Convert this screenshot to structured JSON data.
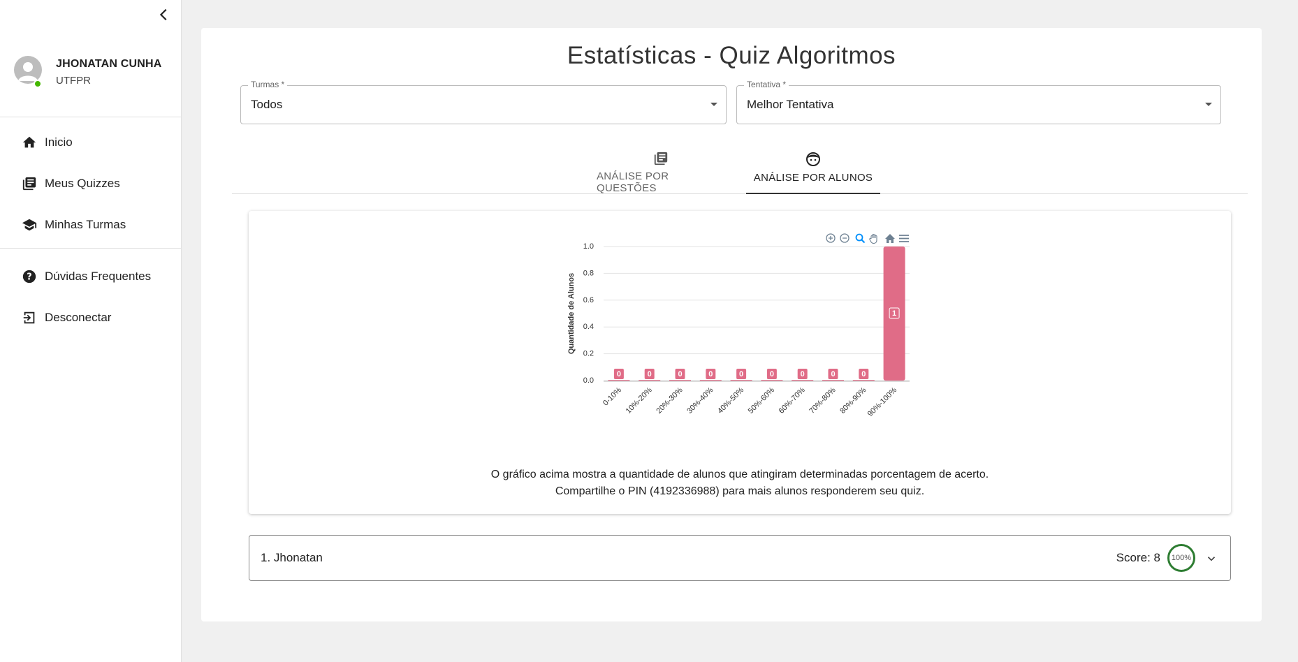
{
  "sidebar": {
    "user_name": "JHONATAN CUNHA",
    "user_org": "UTFPR",
    "nav_main": [
      {
        "label": "Inicio",
        "icon": "home-icon"
      },
      {
        "label": "Meus Quizzes",
        "icon": "library-books-icon"
      },
      {
        "label": "Minhas Turmas",
        "icon": "school-icon"
      }
    ],
    "nav_secondary": [
      {
        "label": "Dúvidas Frequentes",
        "icon": "help-icon"
      },
      {
        "label": "Desconectar",
        "icon": "logout-icon"
      }
    ]
  },
  "main": {
    "title": "Estatísticas - Quiz Algoritmos",
    "filters": {
      "turmas": {
        "label": "Turmas *",
        "value": "Todos"
      },
      "tentativa": {
        "label": "Tentativa *",
        "value": "Melhor Tentativa"
      }
    },
    "tabs": [
      {
        "label": "ANÁLISE POR QUESTÕES",
        "icon": "article-icon",
        "active": false
      },
      {
        "label": "ANÁLISE POR ALUNOS",
        "icon": "face-icon",
        "active": true
      }
    ],
    "chart_description": [
      "O gráfico acima mostra a quantidade de alunos que atingiram determinadas porcentagem de acerto.",
      "Compartilhe o PIN (4192336988) para mais alunos responderem seu quiz."
    ],
    "students": [
      {
        "name": "1. Jhonatan",
        "score_text": "Score: 8",
        "percent_text": "100%",
        "percent": 100
      }
    ]
  },
  "colors": {
    "bar": "#e06c87",
    "score_ring": "#2e7d32",
    "online": "#44b700"
  },
  "chart_data": {
    "type": "bar",
    "categories": [
      "0-10%",
      "10%-20%",
      "20%-30%",
      "30%-40%",
      "40%-50%",
      "50%-60%",
      "60%-70%",
      "70%-80%",
      "80%-90%",
      "90%-100%"
    ],
    "values": [
      0,
      0,
      0,
      0,
      0,
      0,
      0,
      0,
      0,
      1
    ],
    "ylabel": "Quantidade de Alunos",
    "xlabel": "",
    "ylim": [
      0,
      1.0
    ],
    "yticks": [
      "0.0",
      "0.2",
      "0.4",
      "0.6",
      "0.8",
      "1.0"
    ],
    "grid": true,
    "toolbar": [
      "zoom-in-icon",
      "zoom-out-icon",
      "zoom-select-icon",
      "pan-icon",
      "reset-home-icon",
      "menu-icon"
    ]
  }
}
